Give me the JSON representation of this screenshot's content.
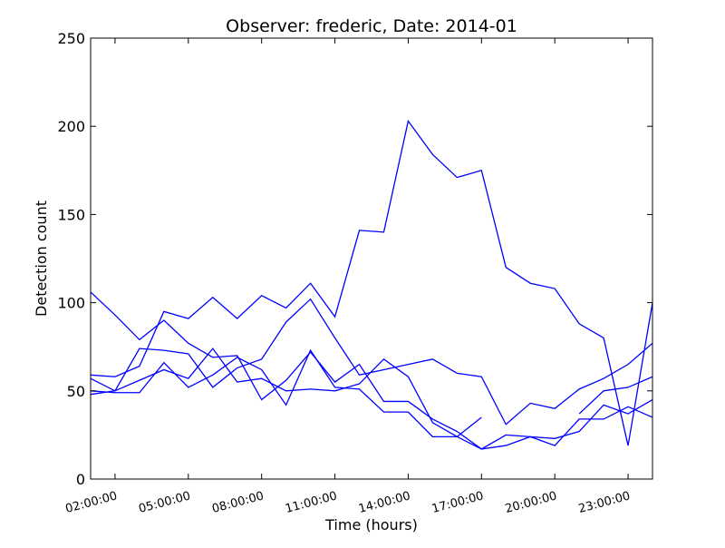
{
  "chart_data": {
    "type": "line",
    "title": "Observer: frederic, Date: 2014-01",
    "xlabel": "Time (hours)",
    "ylabel": "Detection count",
    "x_unit": "hours",
    "xlim": [
      1,
      24
    ],
    "ylim": [
      0,
      250
    ],
    "yticks": [
      0,
      50,
      100,
      150,
      200,
      250
    ],
    "xticks": [
      {
        "value": 2,
        "label": "02:00:00"
      },
      {
        "value": 5,
        "label": "05:00:00"
      },
      {
        "value": 8,
        "label": "08:00:00"
      },
      {
        "value": 11,
        "label": "11:00:00"
      },
      {
        "value": 14,
        "label": "14:00:00"
      },
      {
        "value": 17,
        "label": "17:00:00"
      },
      {
        "value": 20,
        "label": "20:00:00"
      },
      {
        "value": 23,
        "label": "23:00:00"
      }
    ],
    "grid": false,
    "line_color": "#0000ff",
    "series": [
      {
        "x": [
          1,
          2,
          3,
          4,
          5,
          6,
          7,
          8,
          9,
          10,
          11,
          12,
          13,
          14,
          15,
          16,
          17,
          18,
          19,
          20,
          21,
          22,
          23,
          24
        ],
        "values": [
          106,
          93,
          79,
          90,
          77,
          69,
          70,
          45,
          56,
          72,
          55,
          65,
          44,
          44,
          34,
          27,
          17,
          25,
          24,
          23,
          27,
          42,
          37,
          45
        ]
      },
      {
        "x": [
          1,
          2,
          3,
          4,
          5,
          6,
          7,
          8,
          9,
          10,
          11,
          12,
          13,
          14,
          15,
          16,
          17,
          18,
          19,
          20,
          21,
          22,
          23,
          24
        ],
        "values": [
          59,
          58,
          64,
          95,
          91,
          103,
          91,
          104,
          97,
          111,
          92,
          141,
          140,
          203,
          184,
          171,
          175,
          120,
          111,
          108,
          88,
          80,
          19,
          100
        ]
      },
      {
        "x": [
          1,
          2,
          3,
          4,
          5,
          6,
          7,
          8,
          9,
          10,
          11,
          12,
          13,
          14,
          15,
          16,
          17,
          18,
          19,
          20,
          21,
          22,
          23,
          24
        ],
        "values": [
          57,
          50,
          74,
          73,
          71,
          52,
          63,
          68,
          89,
          102,
          80,
          59,
          62,
          65,
          68,
          60,
          58,
          31,
          43,
          40,
          51,
          57,
          65,
          77
        ]
      },
      {
        "x": [
          1,
          2,
          3,
          4,
          5,
          6,
          7,
          8,
          9,
          10,
          11,
          12,
          13,
          14,
          15,
          16,
          17
        ],
        "values": [
          48,
          50,
          56,
          62,
          57,
          74,
          55,
          57,
          50,
          51,
          50,
          54,
          68,
          58,
          32,
          24,
          35
        ]
      },
      {
        "x": [
          1,
          2,
          3,
          4,
          5,
          6,
          7,
          8,
          9,
          10,
          11,
          12,
          13,
          14,
          15,
          16,
          17,
          18,
          19,
          20,
          21,
          22,
          23,
          24
        ],
        "values": [
          50,
          49,
          49,
          66,
          52,
          59,
          69,
          62,
          42,
          73,
          52,
          51,
          38,
          38,
          24,
          24,
          17,
          19,
          24,
          19,
          34,
          34,
          41,
          35
        ]
      },
      {
        "x": [
          21,
          22,
          23,
          24
        ],
        "values": [
          37,
          50,
          52,
          58
        ]
      }
    ]
  }
}
